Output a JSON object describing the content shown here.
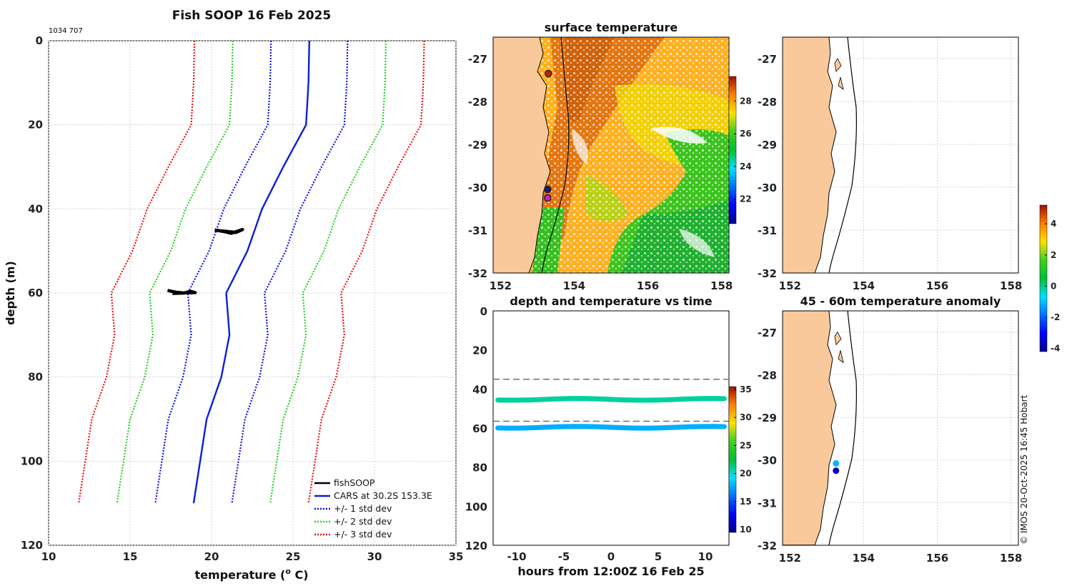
{
  "colors": {
    "land": "#f9c99b",
    "cars": "#0a1fd8",
    "std1": "#1010e0",
    "std2": "#26d026",
    "std3": "#ee1111",
    "fish": "#000000"
  },
  "footer": {
    "credit": "© IMOS 20-Oct-2025 16:45 Hobart"
  },
  "chart_data": [
    {
      "id": "profile",
      "type": "line",
      "title": "Fish SOOP 16 Feb 2025",
      "subtitle": "1034 707",
      "xlabel": "temperature (",
      "xlabel_sup": "o",
      "xlabel_end": " C)",
      "ylabel": "depth (m)",
      "xlim": [
        10,
        35
      ],
      "ylim": [
        0,
        120
      ],
      "xticks": [
        "10",
        "15",
        "20",
        "25",
        "30",
        "35"
      ],
      "yticks": [
        "0",
        "20",
        "40",
        "60",
        "80",
        "100",
        "120"
      ],
      "depths": [
        0,
        10,
        20,
        30,
        40,
        50,
        60,
        70,
        80,
        90,
        100,
        110
      ],
      "cars": [
        26.0,
        25.95,
        25.8,
        24.4,
        23.1,
        22.2,
        20.9,
        21.1,
        20.6,
        19.7,
        19.3,
        18.9
      ],
      "std": 2.35,
      "fish_segments": [
        {
          "depth": [
            45.0,
            45.4,
            45.8,
            45.3,
            44.9,
            45.6,
            45.2
          ],
          "temp": [
            20.2,
            20.8,
            21.2,
            21.6,
            21.9,
            21.5,
            20.6
          ]
        },
        {
          "depth": [
            59.4,
            59.8,
            60.0,
            59.6,
            59.9,
            60.1
          ],
          "temp": [
            17.3,
            17.8,
            18.3,
            18.7,
            19.0,
            17.6
          ]
        }
      ],
      "legend": [
        "fishSOOP",
        "CARS at 30.2S 153.3E",
        "+/- 1 std dev",
        "+/- 2 std dev",
        "+/- 3 std dev"
      ]
    },
    {
      "id": "surface",
      "type": "heatmap",
      "title": "surface temperature",
      "xlim": [
        151.8,
        158.2
      ],
      "ylim": [
        -32,
        -26.5
      ],
      "xticks": [
        "152",
        "154",
        "156",
        "158"
      ],
      "yticks": [
        "-27",
        "-28",
        "-29",
        "-30",
        "-31",
        "-32"
      ],
      "colorbar": {
        "range": [
          20.5,
          29.5
        ],
        "ticks": [
          "22",
          "24",
          "26",
          "28"
        ]
      },
      "markers": [
        {
          "lon": 153.28,
          "lat": -30.05,
          "color": "#1a1a80"
        },
        {
          "lon": 153.28,
          "lat": -30.25,
          "color": "#d020d0"
        },
        {
          "lon": 153.3,
          "lat": -27.35,
          "color": "#cc2200"
        }
      ]
    },
    {
      "id": "empty_map",
      "type": "scatter",
      "title": "",
      "xlim": [
        151.8,
        158.2
      ],
      "ylim": [
        -32,
        -26.5
      ],
      "xticks": [
        "152",
        "154",
        "156",
        "158"
      ],
      "yticks": [
        "-27",
        "-28",
        "-29",
        "-30",
        "-31",
        "-32"
      ]
    },
    {
      "id": "timeseries",
      "type": "scatter",
      "title": "depth and temperature vs time",
      "xlabel": "hours from 12:00Z 16 Feb 25",
      "xlim": [
        -12.5,
        12.5
      ],
      "ylim": [
        0,
        120
      ],
      "xticks": [
        "-10",
        "-5",
        "0",
        "5",
        "10"
      ],
      "yticks": [
        "0",
        "20",
        "40",
        "60",
        "80",
        "100",
        "120"
      ],
      "dashed_depths": [
        35,
        56.5
      ],
      "series": [
        {
          "name": "45m",
          "depth": 45.3,
          "temp": 20.8
        },
        {
          "name": "60m",
          "depth": 59.6,
          "temp": 17.8
        }
      ],
      "colorbar": {
        "range": [
          9.5,
          35.5
        ],
        "ticks": [
          "10",
          "15",
          "20",
          "25",
          "30",
          "35"
        ]
      }
    },
    {
      "id": "anomaly",
      "type": "scatter",
      "title": "45 - 60m temperature anomaly",
      "xlim": [
        151.8,
        158.2
      ],
      "ylim": [
        -32,
        -26.5
      ],
      "xticks": [
        "152",
        "154",
        "156",
        "158"
      ],
      "yticks": [
        "-27",
        "-28",
        "-29",
        "-30",
        "-31",
        "-32"
      ],
      "points": [
        {
          "lon": 153.25,
          "lat": -30.08,
          "anomaly": -1.1
        },
        {
          "lon": 153.25,
          "lat": -30.25,
          "anomaly": -3.6
        }
      ],
      "colorbar": {
        "range": [
          -4.2,
          5.2
        ],
        "ticks": [
          "4",
          "2",
          "0",
          "-2",
          "-4"
        ]
      }
    }
  ]
}
